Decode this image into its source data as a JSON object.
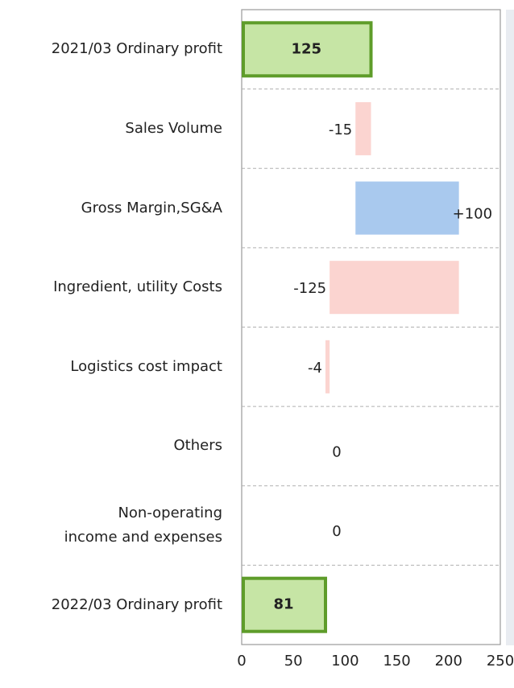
{
  "chart_data": {
    "type": "waterfall",
    "orientation": "horizontal",
    "categories": [
      "2021/03 Ordinary profit",
      "Sales Volume",
      "Gross Margin,SG&A",
      "Ingredient, utility Costs",
      "Logistics cost impact",
      "Others",
      "Non-operating\nincome and expenses",
      "2022/03 Ordinary profit"
    ],
    "values": [
      125,
      -15,
      100,
      -125,
      -4,
      0,
      0,
      81
    ],
    "value_labels": [
      "125",
      "-15",
      "+100",
      "-125",
      "-4",
      "0",
      "0",
      "81"
    ],
    "measure": [
      "total",
      "relative",
      "relative",
      "relative",
      "relative",
      "relative",
      "relative",
      "total"
    ],
    "total_color": "#c6e5a5",
    "total_edge_color": "#5e9c2a",
    "increase_color": "#a9c9ee",
    "decrease_color": "#fbd4d0",
    "decrease_label_color": "#e00000",
    "xlim": [
      0,
      250
    ],
    "xticks": [
      0,
      50,
      100,
      150,
      200,
      250
    ],
    "grid": false
  }
}
